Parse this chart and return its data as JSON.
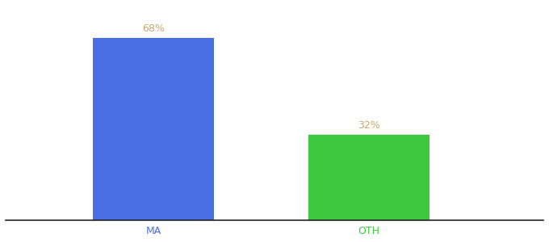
{
  "categories": [
    "MA",
    "OTH"
  ],
  "values": [
    68,
    32
  ],
  "bar_colors": [
    "#4A6FE3",
    "#3DC83D"
  ],
  "label_color": "#C8A870",
  "label_fontsize": 9,
  "tick_fontsize": 9,
  "tick_color_ma": "#4A6FE3",
  "tick_color_oth": "#3DC83D",
  "background_color": "#ffffff",
  "ylim": [
    0,
    80
  ],
  "bar_width": 0.18,
  "x_positions": [
    0.3,
    0.62
  ]
}
